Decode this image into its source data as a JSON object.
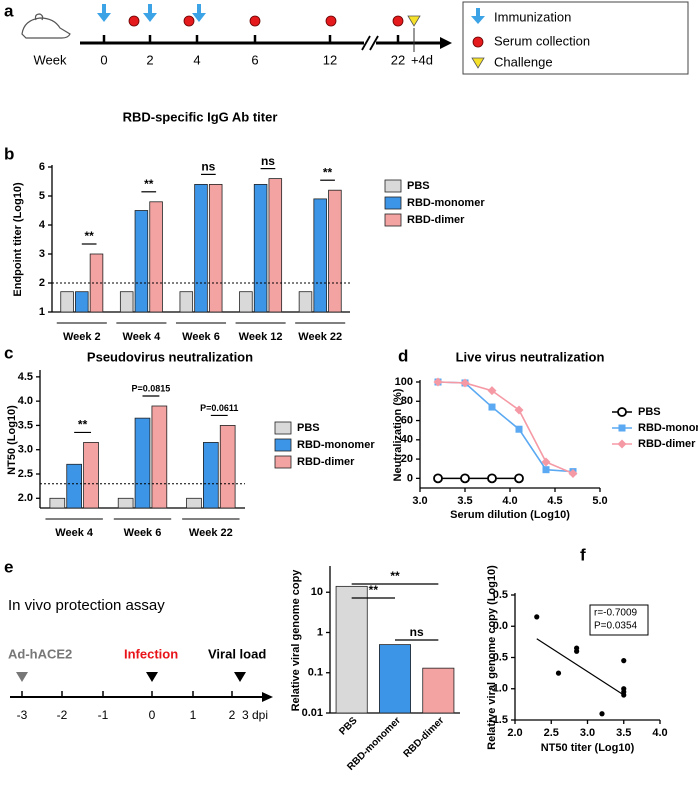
{
  "panel_labels": [
    "a",
    "b",
    "c",
    "d",
    "e",
    "f"
  ],
  "timeline_a": {
    "axis_label": "Week",
    "ticks": [
      "0",
      "2",
      "4",
      "6",
      "12",
      "22",
      "+4d"
    ],
    "legend": [
      "Immunization",
      "Serum collection",
      "Challenge"
    ]
  },
  "timeline_e": {
    "title": "In vivo protection assay",
    "ticks": [
      "-3",
      "-2",
      "-1",
      "0",
      "1",
      "2",
      "3 dpi"
    ],
    "events": [
      "Ad-hACE2",
      "Infection",
      "Viral load"
    ]
  },
  "chart_data": [
    {
      "type": "bar",
      "title": "RBD-specific IgG Ab titer",
      "ylabel": "Endpoint titer (Log10)",
      "categories": [
        "Week 2",
        "Week 4",
        "Week 6",
        "Week 12",
        "Week 22"
      ],
      "series": [
        {
          "name": "PBS",
          "color": "#d9d9d9",
          "values": [
            1.7,
            1.7,
            1.7,
            1.7,
            1.7
          ]
        },
        {
          "name": "RBD-monomer",
          "color": "#3d95e8",
          "values": [
            1.7,
            4.5,
            5.4,
            5.4,
            4.9
          ]
        },
        {
          "name": "RBD-dimer",
          "color": "#f4a3a3",
          "values": [
            3.0,
            4.8,
            5.4,
            5.6,
            5.2
          ]
        }
      ],
      "ylim": [
        1,
        6
      ],
      "yticks": [
        1,
        2,
        3,
        4,
        5,
        6
      ],
      "threshold": 2,
      "annotations": [
        "**",
        "**",
        "ns",
        "ns",
        "**"
      ]
    },
    {
      "type": "bar",
      "title": "Pseudovirus neutralization",
      "ylabel": "NT50 (Log10)",
      "categories": [
        "Week 4",
        "Week 6",
        "Week 22"
      ],
      "series": [
        {
          "name": "PBS",
          "color": "#d9d9d9",
          "values": [
            2.0,
            2.0,
            2.0
          ]
        },
        {
          "name": "RBD-monomer",
          "color": "#3d95e8",
          "values": [
            2.7,
            3.65,
            3.15
          ]
        },
        {
          "name": "RBD-dimer",
          "color": "#f4a3a3",
          "values": [
            3.15,
            3.9,
            3.5
          ]
        }
      ],
      "ylim": [
        1.8,
        4.6
      ],
      "yticks": [
        {
          "value": 2,
          "label": "2.0"
        },
        2.5,
        {
          "value": 3,
          "label": "3.0"
        },
        3.5,
        {
          "value": 4,
          "label": "4.0"
        },
        4.5
      ],
      "threshold": 2.3,
      "annotations": [
        "**",
        "P=0.0815",
        "P=0.0611"
      ]
    },
    {
      "type": "line",
      "title": "Live virus neutralization",
      "xlabel": "Serum dilution (Log10)",
      "ylabel": "Neutralization (%)",
      "x": [
        3.2,
        3.5,
        3.8,
        4.1,
        4.4,
        4.7
      ],
      "series": [
        {
          "name": "PBS",
          "color": "#000000",
          "marker": "circle",
          "values": [
            0,
            0,
            0,
            0,
            null,
            null
          ]
        },
        {
          "name": "RBD-monomer",
          "color": "#5aa9f2",
          "marker": "square",
          "values": [
            100,
            99,
            74,
            51,
            9,
            7
          ]
        },
        {
          "name": "RBD-dimer",
          "color": "#f59aa5",
          "marker": "diamond",
          "values": [
            100,
            99,
            91,
            71,
            17,
            5
          ]
        }
      ],
      "xlim": [
        3,
        5
      ],
      "xticks": [
        {
          "value": 3,
          "label": "3.0"
        },
        3.5,
        {
          "value": 4,
          "label": "4.0"
        },
        4.5,
        {
          "value": 5,
          "label": "5.0"
        }
      ],
      "ylim": [
        -10,
        100
      ],
      "yticks": [
        0,
        20,
        40,
        60,
        80,
        100
      ]
    },
    {
      "type": "bar",
      "log": true,
      "ylabel": "Relative viral genome copy",
      "categories": [
        "PBS",
        "RBD-monomer",
        "RBD-dimer"
      ],
      "values": [
        14,
        0.5,
        0.13
      ],
      "colors": [
        "#d9d9d9",
        "#3d95e8",
        "#f4a3a3"
      ],
      "ylim": [
        0.01,
        40
      ],
      "yticks": [
        0.01,
        0.1,
        1,
        10
      ],
      "annotations": [
        "**",
        "**",
        "ns"
      ]
    },
    {
      "type": "scatter",
      "xlabel": "NT50 titer (Log10)",
      "ylabel": "Relative viral genome copy (Log10)",
      "x": [
        2.3,
        2.6,
        2.85,
        2.85,
        3.2,
        3.5,
        3.5,
        3.5,
        3.5
      ],
      "values": [
        0.15,
        -0.75,
        -0.35,
        -0.4,
        -1.4,
        -0.55,
        -1.0,
        -1.1,
        -1.05
      ],
      "fit": {
        "x": [
          2.3,
          3.5
        ],
        "y": [
          -0.2,
          -1.1
        ]
      },
      "xlim": [
        2,
        4
      ],
      "xticks": [
        {
          "value": 2,
          "label": "2.0"
        },
        2.5,
        {
          "value": 3,
          "label": "3.0"
        },
        3.5,
        {
          "value": 4,
          "label": "4.0"
        }
      ],
      "ylim": [
        -1.5,
        0.5
      ],
      "yticks": [
        -1.5,
        {
          "value": -1,
          "label": "-1.0"
        },
        -0.5,
        {
          "value": 0,
          "label": "0.0"
        },
        0.5
      ],
      "annotations": [
        "r=-0.7009",
        "P=0.0354"
      ]
    }
  ]
}
